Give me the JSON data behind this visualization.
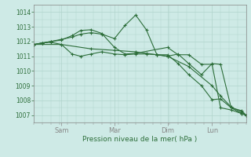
{
  "bg_color": "#ceeae6",
  "grid_color": "#b0d4cc",
  "line_color": "#2d6e3a",
  "xlabel": "Pression niveau de la mer( hPa )",
  "xlabel_color": "#2d6e3a",
  "ylim": [
    1006.5,
    1014.5
  ],
  "yticks": [
    1007,
    1008,
    1009,
    1010,
    1011,
    1012,
    1013,
    1014
  ],
  "xtick_labels": [
    "Sam",
    "Mar",
    "Dim",
    "Lun"
  ],
  "xtick_positions": [
    0.13,
    0.38,
    0.63,
    0.84
  ],
  "series1_x": [
    0.0,
    0.04,
    0.08,
    0.13,
    0.18,
    0.22,
    0.27,
    0.32,
    0.38,
    0.43,
    0.48,
    0.53,
    0.58,
    0.63,
    0.68,
    0.73,
    0.79,
    0.84,
    0.88,
    0.93,
    0.98,
    1.0
  ],
  "series1_y": [
    1011.8,
    1011.9,
    1012.0,
    1012.15,
    1012.3,
    1012.5,
    1012.6,
    1012.5,
    1012.2,
    1013.1,
    1013.8,
    1012.8,
    1011.1,
    1011.0,
    1011.15,
    1010.5,
    1009.75,
    1010.5,
    1010.45,
    1007.5,
    1007.3,
    1007.0
  ],
  "series2_x": [
    0.0,
    0.04,
    0.08,
    0.13,
    0.18,
    0.22,
    0.27,
    0.32,
    0.38,
    0.43,
    0.48,
    0.63,
    0.68,
    0.73,
    0.79,
    0.84,
    0.88,
    0.93,
    0.98,
    1.0
  ],
  "series2_y": [
    1011.8,
    1011.9,
    1012.0,
    1012.1,
    1012.4,
    1012.75,
    1012.8,
    1012.55,
    1011.6,
    1011.15,
    1011.2,
    1011.6,
    1011.1,
    1011.1,
    1010.45,
    1010.45,
    1007.5,
    1007.35,
    1007.1,
    1007.0
  ],
  "series3_x": [
    0.0,
    0.04,
    0.08,
    0.13,
    0.18,
    0.22,
    0.27,
    0.32,
    0.38,
    0.43,
    0.48,
    0.53,
    0.58,
    0.63,
    0.68,
    0.73,
    0.79,
    0.84,
    0.88,
    0.93,
    0.98,
    1.0
  ],
  "series3_y": [
    1011.8,
    1011.9,
    1011.95,
    1011.8,
    1011.15,
    1011.0,
    1011.15,
    1011.3,
    1011.15,
    1011.1,
    1011.15,
    1011.15,
    1011.1,
    1011.1,
    1010.5,
    1009.75,
    1009.0,
    1008.05,
    1008.1,
    1007.5,
    1007.1,
    1007.0
  ],
  "series4_x": [
    0.0,
    0.13,
    0.27,
    0.38,
    0.48,
    0.53,
    0.58,
    0.63,
    0.73,
    0.84,
    0.88,
    0.93,
    0.98,
    1.0
  ],
  "series4_y": [
    1011.8,
    1011.8,
    1011.5,
    1011.4,
    1011.3,
    1011.2,
    1011.1,
    1011.0,
    1010.3,
    1009.0,
    1008.3,
    1007.55,
    1007.2,
    1007.0
  ]
}
